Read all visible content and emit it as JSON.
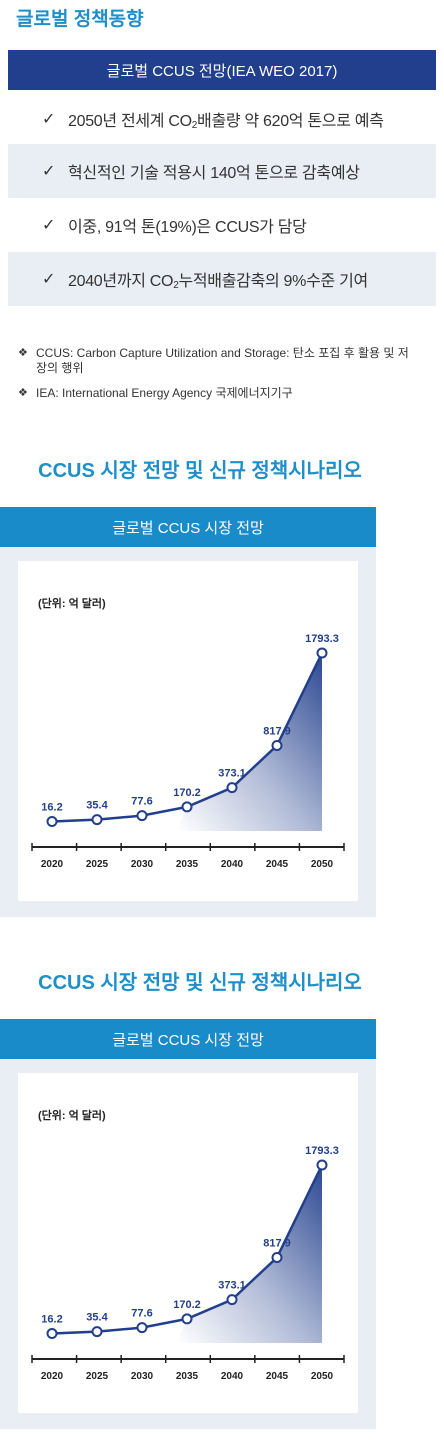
{
  "header": {
    "title": "글로벌 정책동향",
    "banner": "글로벌 CCUS 전망(IEA WEO 2017)"
  },
  "points": [
    {
      "check": "✓",
      "pre": "2050년 전세계 CO",
      "sub": "2",
      "post": "배출량 약 620억 톤으로 예측"
    },
    {
      "check": "✓",
      "pre": "혁신적인 기술 적용시 140억 톤으로 감축예상",
      "sub": "",
      "post": ""
    },
    {
      "check": "✓",
      "pre": "이중, 91억 톤(19%)은 CCUS가 담당",
      "sub": "",
      "post": ""
    },
    {
      "check": "✓",
      "pre": "2040년까지 CO",
      "sub": "2",
      "post": "누적배출감축의 9%수준 기여"
    }
  ],
  "notes": [
    {
      "bullet": "❖",
      "text": "CCUS: Carbon Capture Utilization and Storage: 탄소 포집 후 활용 및 저장의 행위"
    },
    {
      "bullet": "❖",
      "text": "IEA: International Energy Agency 국제에너지기구"
    }
  ],
  "blocks": [
    {
      "title": "CCUS 시장 전망 및 신규 정책시나리오",
      "chart_header": "글로벌 CCUS 시장 전망",
      "unit": "(단위: 억 달러)"
    },
    {
      "title": "CCUS 시장 전망 및 신규 정책시나리오",
      "chart_header": "글로벌 CCUS 시장 전망",
      "unit": "(단위: 억 달러)"
    }
  ],
  "chart_data": [
    {
      "type": "area",
      "categories": [
        "2020",
        "2025",
        "2030",
        "2035",
        "2040",
        "2045",
        "2050"
      ],
      "values": [
        16.2,
        35.4,
        77.6,
        170.2,
        373.1,
        817.9,
        1793.3
      ],
      "value_labels": [
        "16.2",
        "35.4",
        "77.6",
        "170.2",
        "373.1",
        "817.9",
        "1793.3"
      ],
      "title": "글로벌 CCUS 시장 전망",
      "ylabel": "(단위: 억 달러)",
      "ylim": [
        0,
        1793.3
      ],
      "grid": false,
      "legend": "none",
      "colors": {
        "line": "#213f8c",
        "fill": "#213f8c",
        "label": "#213f8c"
      }
    },
    {
      "type": "area",
      "categories": [
        "2020",
        "2025",
        "2030",
        "2035",
        "2040",
        "2045",
        "2050"
      ],
      "values": [
        16.2,
        35.4,
        77.6,
        170.2,
        373.1,
        817.9,
        1793.3
      ],
      "value_labels": [
        "16.2",
        "35.4",
        "77.6",
        "170.2",
        "373.1",
        "817.9",
        "1793.3"
      ],
      "title": "글로벌 CCUS 시장 전망",
      "ylabel": "(단위: 억 달러)",
      "ylim": [
        0,
        1793.3
      ],
      "grid": false,
      "legend": "none",
      "colors": {
        "line": "#213f8c",
        "fill": "#213f8c",
        "label": "#213f8c"
      }
    }
  ]
}
